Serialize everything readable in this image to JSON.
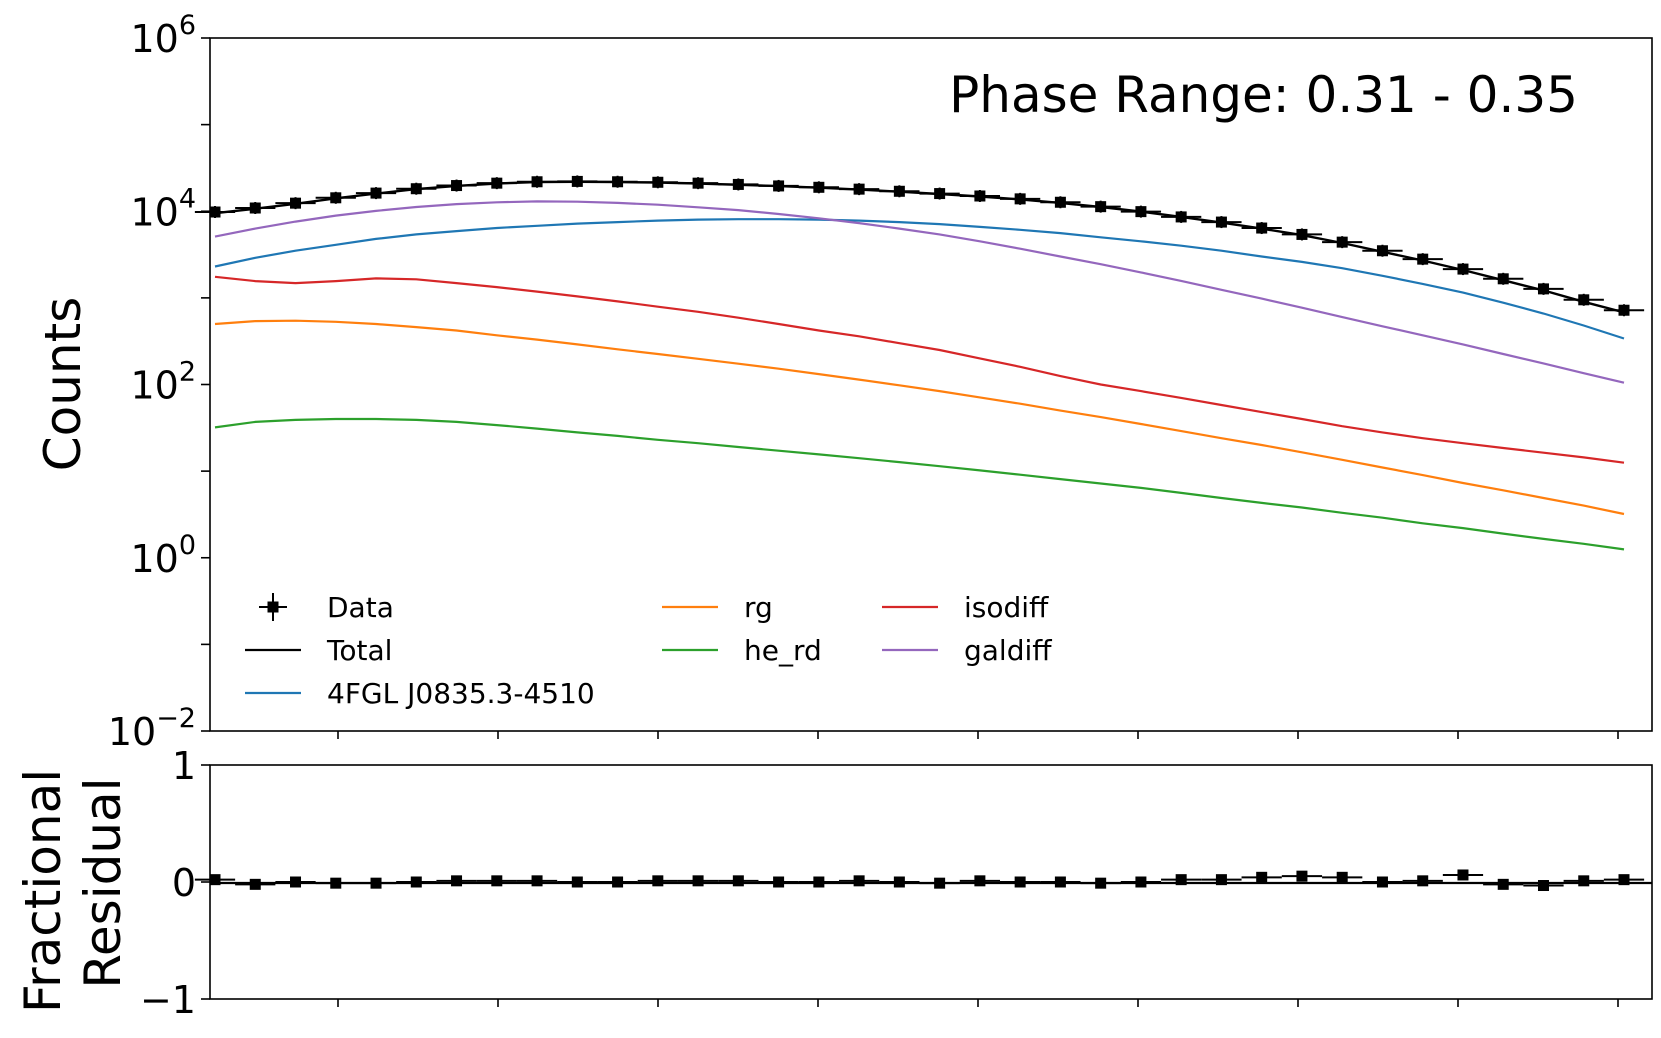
{
  "chart_data": [
    {
      "type": "line",
      "annotation": "Phase Range: 0.31 - 0.35",
      "ylabel": "Counts",
      "yscale": "log",
      "ylim": [
        0.01,
        1000000
      ],
      "xlim": [
        0,
        36
      ],
      "ytick_labels": [
        {
          "base": "10",
          "exp": "6",
          "value": 1000000
        },
        {
          "base": "10",
          "exp": "4",
          "value": 10000
        },
        {
          "base": "10",
          "exp": "2",
          "value": 100
        },
        {
          "base": "10",
          "exp": "0",
          "value": 1
        },
        {
          "base": "10",
          "exp": "−2",
          "value": 0.01
        }
      ],
      "legend_position": "lower-left",
      "x": [
        0,
        1,
        2,
        3,
        4,
        5,
        6,
        7,
        8,
        9,
        10,
        11,
        12,
        13,
        14,
        15,
        16,
        17,
        18,
        19,
        20,
        21,
        22,
        23,
        24,
        25,
        26,
        27,
        28,
        29,
        30,
        31,
        32,
        33,
        34,
        35
      ],
      "data": {
        "name": "Data",
        "values": [
          9800,
          10900,
          12400,
          14300,
          16200,
          18200,
          19800,
          21100,
          21900,
          22100,
          21900,
          21600,
          21100,
          20400,
          19600,
          18900,
          18000,
          17000,
          16000,
          15000,
          13900,
          12700,
          11300,
          9900,
          8600,
          7500,
          6400,
          5400,
          4400,
          3500,
          2800,
          2150,
          1660,
          1270,
          950,
          720
        ]
      },
      "series": [
        {
          "name": "Total",
          "color": "#000000",
          "values": [
            9500,
            10700,
            12200,
            14100,
            16000,
            18000,
            19600,
            20900,
            21700,
            21900,
            21700,
            21400,
            20900,
            20200,
            19500,
            18700,
            17800,
            16800,
            15800,
            14800,
            13700,
            12500,
            11200,
            9900,
            8600,
            7400,
            6300,
            5300,
            4300,
            3400,
            2700,
            2100,
            1600,
            1220,
            900,
            680
          ]
        },
        {
          "name": "4FGL J0835.3-4510",
          "color": "#1f77b4",
          "values": [
            2300,
            2900,
            3500,
            4100,
            4800,
            5400,
            5900,
            6400,
            6800,
            7200,
            7500,
            7800,
            8000,
            8100,
            8100,
            8000,
            7800,
            7500,
            7100,
            6600,
            6100,
            5600,
            5000,
            4500,
            4000,
            3500,
            3000,
            2600,
            2200,
            1800,
            1450,
            1150,
            880,
            660,
            480,
            340
          ]
        },
        {
          "name": "rg",
          "color": "#ff7f0e",
          "values": [
            500,
            540,
            545,
            530,
            500,
            460,
            420,
            370,
            330,
            290,
            255,
            225,
            198,
            174,
            152,
            132,
            114,
            98,
            84,
            71,
            60,
            50,
            42,
            35,
            29,
            24,
            20,
            16.5,
            13.5,
            11,
            9,
            7.3,
            6,
            4.9,
            4,
            3.2
          ]
        },
        {
          "name": "he_rd",
          "color": "#2ca02c",
          "values": [
            32,
            37,
            39,
            40,
            40,
            39,
            37,
            34,
            31,
            28,
            25.5,
            23,
            21,
            19,
            17.2,
            15.6,
            14.1,
            12.7,
            11.4,
            10.2,
            9.1,
            8.1,
            7.2,
            6.4,
            5.6,
            4.9,
            4.3,
            3.8,
            3.3,
            2.9,
            2.5,
            2.2,
            1.9,
            1.65,
            1.45,
            1.25
          ]
        },
        {
          "name": "isodiff",
          "color": "#d62728",
          "values": [
            1750,
            1560,
            1480,
            1560,
            1680,
            1640,
            1480,
            1330,
            1180,
            1040,
            910,
            790,
            690,
            590,
            500,
            420,
            360,
            300,
            250,
            200,
            160,
            125,
            100,
            84,
            70,
            58,
            48,
            40,
            33,
            28,
            24,
            21,
            18.5,
            16.3,
            14.4,
            12.5
          ]
        },
        {
          "name": "galdiff",
          "color": "#9467bd",
          "values": [
            5100,
            6300,
            7600,
            8900,
            10100,
            11200,
            12100,
            12700,
            13000,
            12900,
            12500,
            11900,
            11100,
            10300,
            9300,
            8300,
            7300,
            6300,
            5400,
            4500,
            3700,
            3000,
            2450,
            1970,
            1570,
            1240,
            980,
            770,
            600,
            470,
            370,
            290,
            225,
            175,
            135,
            105
          ]
        }
      ]
    },
    {
      "type": "scatter",
      "ylabel": "Fractional\nResidual",
      "ylabel_lines": [
        "Fractional",
        "Residual"
      ],
      "ylim": [
        -1,
        1
      ],
      "ytick_labels": [
        {
          "label": "1",
          "value": 1
        },
        {
          "label": "0",
          "value": 0
        },
        {
          "label": "−1",
          "value": -1
        }
      ],
      "x": [
        0,
        1,
        2,
        3,
        4,
        5,
        6,
        7,
        8,
        9,
        10,
        11,
        12,
        13,
        14,
        15,
        16,
        17,
        18,
        19,
        20,
        21,
        22,
        23,
        24,
        25,
        26,
        27,
        28,
        29,
        30,
        31,
        32,
        33,
        34,
        35
      ],
      "values": [
        0.02,
        -0.02,
        0.0,
        -0.01,
        -0.01,
        0.0,
        0.01,
        0.01,
        0.01,
        0.0,
        0.0,
        0.01,
        0.01,
        0.01,
        0.0,
        0.0,
        0.01,
        0.0,
        -0.01,
        0.01,
        0.0,
        0.0,
        -0.01,
        0.0,
        0.02,
        0.02,
        0.04,
        0.05,
        0.04,
        0.0,
        0.01,
        0.06,
        -0.02,
        -0.03,
        0.01,
        0.02
      ]
    }
  ]
}
